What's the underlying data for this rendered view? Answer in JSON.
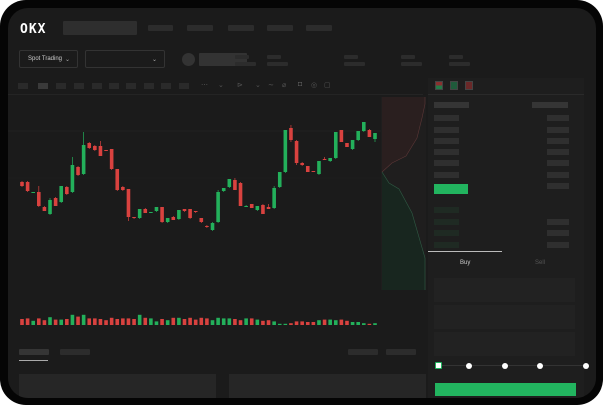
{
  "header": {
    "logo": "OKX"
  },
  "toolbar": {
    "market_selector": "Spot Trading",
    "pair_selector_chevron": "⌄",
    "market_chevron": "⌄"
  },
  "trade_panel": {
    "tabs": [
      {
        "label": "Buy",
        "active": true
      },
      {
        "label": "Sell",
        "active": false
      }
    ],
    "slider_percent": 0,
    "submit_color": "#22b45f"
  },
  "colors": {
    "up": "#23b05b",
    "down": "#d9423f",
    "background": "#1b1b1b"
  },
  "chart_data": {
    "type": "candlestick",
    "candles": [
      [
        68,
        69,
        63,
        64
      ],
      [
        68,
        69,
        58,
        59
      ],
      [
        57,
        58,
        57,
        58
      ],
      [
        58,
        64,
        43,
        44
      ],
      [
        43,
        44,
        39,
        39
      ],
      [
        36,
        52,
        35,
        50
      ],
      [
        52,
        53,
        44,
        44
      ],
      [
        48,
        64,
        47,
        64
      ],
      [
        63,
        64,
        55,
        56
      ],
      [
        58,
        93,
        57,
        85
      ],
      [
        83,
        84,
        74,
        75
      ],
      [
        76,
        118,
        75,
        105
      ],
      [
        107,
        108,
        101,
        102
      ],
      [
        104,
        105,
        99,
        100
      ],
      [
        104,
        109,
        94,
        94
      ],
      [
        100,
        100,
        99,
        99
      ],
      [
        101,
        101,
        80,
        81
      ],
      [
        81,
        81,
        59,
        60
      ],
      [
        63,
        64,
        59,
        60
      ],
      [
        61,
        61,
        29,
        33
      ],
      [
        33,
        33,
        31,
        32
      ],
      [
        32,
        41,
        31,
        41
      ],
      [
        41,
        42,
        37,
        37
      ],
      [
        37,
        38,
        37,
        38
      ],
      [
        39,
        43,
        38,
        43
      ],
      [
        43,
        43,
        27,
        28
      ],
      [
        28,
        32,
        27,
        32
      ],
      [
        33,
        34,
        30,
        30
      ],
      [
        31,
        40,
        30,
        40
      ],
      [
        41,
        41,
        38,
        39
      ],
      [
        41,
        41,
        31,
        32
      ],
      [
        39,
        39,
        37,
        38
      ],
      [
        32,
        32,
        27,
        28
      ],
      [
        24,
        25,
        22,
        23
      ],
      [
        20,
        28,
        19,
        27
      ],
      [
        28,
        60,
        27,
        58
      ],
      [
        59,
        62,
        58,
        62
      ],
      [
        63,
        71,
        62,
        71
      ],
      [
        70,
        72,
        60,
        60
      ],
      [
        67,
        68,
        44,
        44
      ],
      [
        44,
        45,
        43,
        44
      ],
      [
        46,
        46,
        42,
        42
      ],
      [
        40,
        44,
        39,
        44
      ],
      [
        45,
        46,
        36,
        36
      ],
      [
        43,
        46,
        41,
        41
      ],
      [
        42,
        64,
        41,
        62
      ],
      [
        63,
        78,
        62,
        78
      ],
      [
        78,
        120,
        77,
        120
      ],
      [
        122,
        125,
        108,
        110
      ],
      [
        109,
        110,
        85,
        87
      ],
      [
        87,
        88,
        84,
        85
      ],
      [
        84,
        84,
        78,
        78
      ],
      [
        79,
        79,
        78,
        78
      ],
      [
        76,
        89,
        75,
        89
      ],
      [
        91,
        93,
        90,
        90
      ],
      [
        89,
        92,
        88,
        92
      ],
      [
        92,
        118,
        91,
        118
      ],
      [
        120,
        120,
        108,
        108
      ],
      [
        107,
        107,
        103,
        103
      ],
      [
        101,
        110,
        100,
        110
      ],
      [
        110,
        119,
        109,
        119
      ],
      [
        119,
        128,
        118,
        128
      ],
      [
        120,
        121,
        113,
        113
      ],
      [
        111,
        117,
        108,
        117
      ]
    ],
    "volumes": [
      10,
      11,
      7,
      11,
      8,
      13,
      9,
      9,
      10,
      17,
      14,
      17,
      11,
      11,
      10,
      8,
      12,
      10,
      11,
      11,
      10,
      17,
      12,
      11,
      6,
      10,
      8,
      12,
      12,
      10,
      12,
      9,
      12,
      11,
      8,
      12,
      11,
      11,
      10,
      8,
      11,
      11,
      9,
      7,
      8,
      6,
      2,
      2,
      3,
      6,
      6,
      5,
      5,
      8,
      9,
      9,
      8,
      9,
      7,
      5,
      5,
      3,
      2,
      3
    ]
  }
}
